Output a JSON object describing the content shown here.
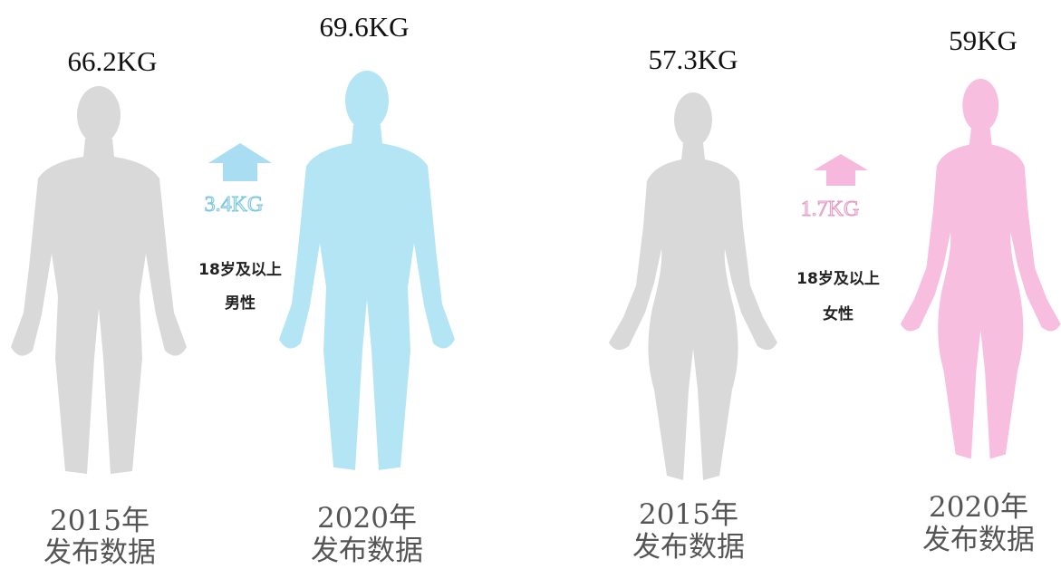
{
  "groups": [
    {
      "change": "3.4KG",
      "audience": [
        "18岁及以上",
        "男性"
      ],
      "figures": [
        {
          "weight": "66.2KG",
          "year": "2015年",
          "caption": "发布数据"
        },
        {
          "weight": "69.6KG",
          "year": "2020年",
          "caption": "发布数据"
        }
      ]
    },
    {
      "change": "1.7KG",
      "audience": [
        "18岁及以上",
        "女性"
      ],
      "figures": [
        {
          "weight": "57.3KG",
          "year": "2015年",
          "caption": "发布数据"
        },
        {
          "weight": "59KG",
          "year": "2020年",
          "caption": "发布数据"
        }
      ]
    }
  ]
}
